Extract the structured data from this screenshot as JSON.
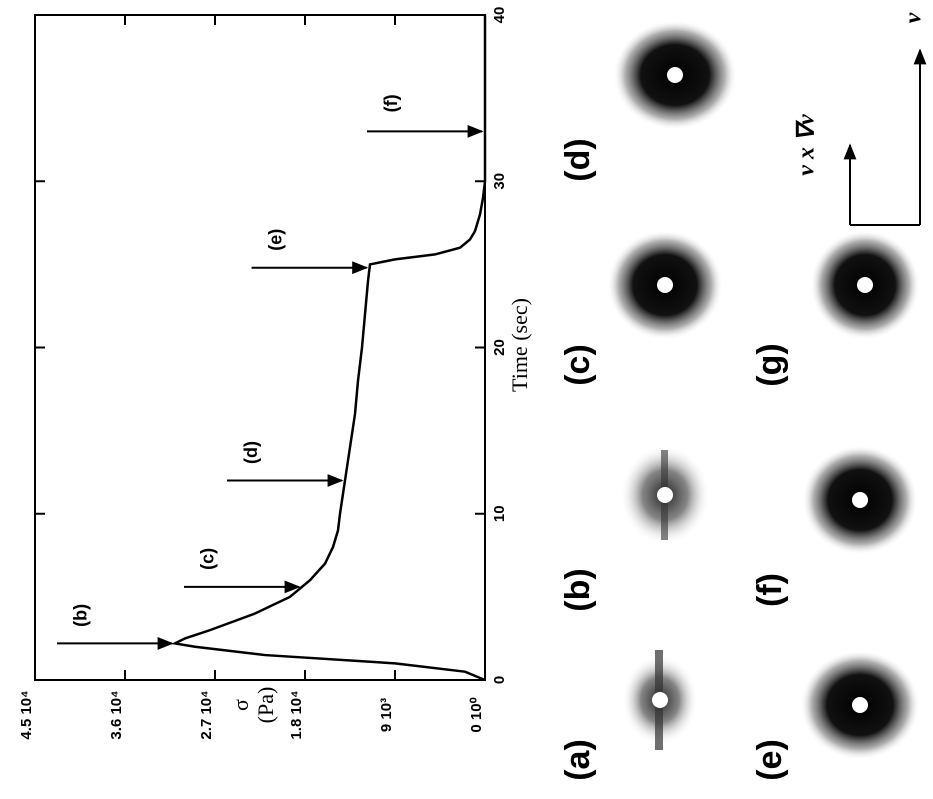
{
  "chart_data": {
    "type": "line",
    "x_label": "Time (sec)",
    "y_label_lines": [
      "σ",
      "(Pa)"
    ],
    "xlim": [
      0,
      40
    ],
    "xticks": [
      0,
      10,
      20,
      30,
      40
    ],
    "ylim": [
      0,
      45000
    ],
    "yticks": [
      {
        "value": 0,
        "label": "0 10⁰"
      },
      {
        "value": 9000,
        "label": "9 10³"
      },
      {
        "value": 18000,
        "label": "1.8 10⁴"
      },
      {
        "value": 27000,
        "label": "2.7 10⁴"
      },
      {
        "value": 36000,
        "label": "3.6 10⁴"
      },
      {
        "value": 45000,
        "label": "4.5 10⁴"
      }
    ],
    "series": [
      {
        "color": "#000000",
        "x": [
          0,
          0.5,
          1,
          1.5,
          2,
          2.2,
          2.5,
          3,
          4,
          5,
          6,
          7,
          8,
          9,
          10,
          12,
          14,
          16,
          18,
          20,
          22,
          24,
          25,
          25.3,
          25.6,
          26,
          26.5,
          27,
          28,
          29,
          30,
          40
        ],
        "values": [
          0,
          2000,
          9000,
          22000,
          29000,
          31000,
          30000,
          27500,
          23000,
          19500,
          17500,
          16000,
          15200,
          14700,
          14500,
          14000,
          13500,
          13000,
          12700,
          12300,
          12000,
          11700,
          11500,
          9000,
          5000,
          2500,
          1500,
          1000,
          500,
          200,
          0,
          0
        ]
      }
    ],
    "annotations": [
      {
        "text": "(b)",
        "x": 2.2
      },
      {
        "text": "(c)",
        "x": 5.6
      },
      {
        "text": "(d)",
        "x": 12
      },
      {
        "text": "(e)",
        "x": 24.8
      },
      {
        "text": "(f)",
        "x": 33
      }
    ]
  },
  "panels": [
    "(a)",
    "(b)",
    "(c)",
    "(d)",
    "(e)",
    "(f)",
    "(g)"
  ],
  "frame_axes": {
    "vertical": "ν x ∇ν",
    "horizontal": "ν"
  }
}
